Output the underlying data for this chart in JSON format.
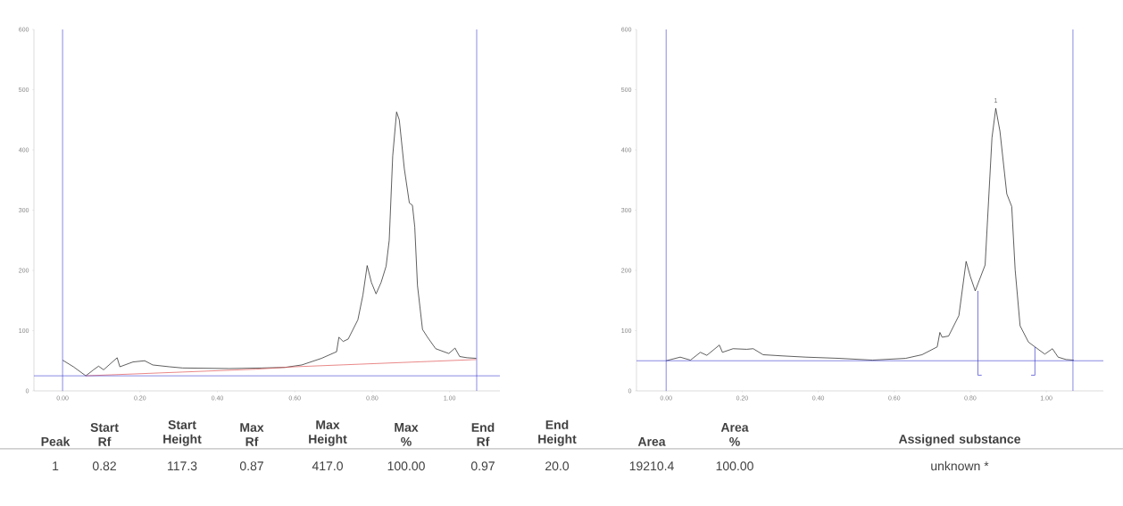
{
  "chart_data": [
    {
      "type": "line",
      "xlim": [
        -0.074,
        1.13
      ],
      "ylim": [
        0,
        600
      ],
      "xticks": [
        {
          "value": 0,
          "label": "0.00"
        },
        {
          "value": 0.2,
          "label": "0.20"
        },
        {
          "value": 0.4,
          "label": "0.40"
        },
        {
          "value": 0.6,
          "label": "0.60"
        },
        {
          "value": 0.8,
          "label": "0.80"
        },
        {
          "value": 1.0,
          "label": "1.00"
        }
      ],
      "yticks": [
        0,
        100,
        200,
        300,
        400,
        500,
        600
      ],
      "series": [
        {
          "color": "#1a1a1a",
          "x": [
            0.0,
            0.028,
            0.06,
            0.08,
            0.093,
            0.106,
            0.141,
            0.148,
            0.182,
            0.212,
            0.233,
            0.276,
            0.31,
            0.43,
            0.515,
            0.575,
            0.618,
            0.669,
            0.708,
            0.714,
            0.725,
            0.738,
            0.763,
            0.776,
            0.787,
            0.798,
            0.81,
            0.823,
            0.836,
            0.844,
            0.853,
            0.863,
            0.87,
            0.883,
            0.896,
            0.904,
            0.91,
            0.917,
            0.93,
            0.943,
            0.964,
            0.998,
            1.014,
            1.026,
            1.045,
            1.069
          ],
          "values": [
            51,
            40,
            25,
            35,
            41,
            35,
            55,
            40,
            48,
            50,
            43,
            40,
            38,
            37,
            38,
            39,
            43,
            54,
            65,
            89,
            82,
            86,
            118,
            159,
            208,
            180,
            161,
            180,
            207,
            250,
            390,
            463,
            450,
            369,
            312,
            308,
            272,
            175,
            102,
            89,
            70,
            62,
            71,
            57,
            55,
            54
          ]
        },
        {
          "color": "#e05555",
          "x": [
            0.06,
            0.5,
            0.6,
            1.069
          ],
          "values": [
            25,
            36,
            40,
            52
          ]
        }
      ],
      "ref_lines": [
        {
          "axis": "x",
          "value": 0,
          "color": "#3b3bd0"
        },
        {
          "axis": "x",
          "value": 1.07,
          "color": "#3b3bd0"
        },
        {
          "axis": "y",
          "value": 25,
          "color": "#3b3bd0"
        }
      ]
    },
    {
      "type": "line",
      "xlim": [
        -0.078,
        1.15
      ],
      "ylim": [
        0,
        600
      ],
      "xticks": [
        {
          "value": 0,
          "label": "0.00"
        },
        {
          "value": 0.2,
          "label": "0.20"
        },
        {
          "value": 0.4,
          "label": "0.40"
        },
        {
          "value": 0.6,
          "label": "0.60"
        },
        {
          "value": 0.8,
          "label": "0.80"
        },
        {
          "value": 1.0,
          "label": "1.00"
        }
      ],
      "yticks": [
        0,
        100,
        200,
        300,
        400,
        500,
        600
      ],
      "series": [
        {
          "color": "#1a1a1a",
          "x": [
            0.0,
            0.037,
            0.064,
            0.09,
            0.107,
            0.14,
            0.148,
            0.176,
            0.212,
            0.229,
            0.255,
            0.307,
            0.368,
            0.455,
            0.543,
            0.63,
            0.673,
            0.713,
            0.72,
            0.726,
            0.743,
            0.77,
            0.789,
            0.8,
            0.813,
            0.839,
            0.857,
            0.867,
            0.878,
            0.896,
            0.909,
            0.918,
            0.931,
            0.953,
            0.97,
            0.996,
            1.016,
            1.031,
            1.052,
            1.072
          ],
          "values": [
            50,
            56,
            51,
            64,
            59,
            76,
            64,
            70,
            69,
            70,
            60,
            58,
            56,
            54,
            51,
            54,
            60,
            73,
            97,
            89,
            91,
            125,
            215,
            190,
            166,
            209,
            420,
            469,
            431,
            327,
            306,
            201,
            108,
            81,
            73,
            61,
            70,
            56,
            52,
            51
          ]
        },
        {
          "color": "#3b3bd0",
          "x": [
            0.82,
            0.82,
            0.83
          ],
          "values": [
            166,
            26,
            26
          ]
        },
        {
          "color": "#3b3bd0",
          "x": [
            0.97,
            0.97,
            0.96
          ],
          "values": [
            73,
            26,
            26
          ]
        }
      ],
      "annotations": [
        "1"
      ],
      "ref_lines": [
        {
          "axis": "x",
          "value": 0,
          "color": "#3b3bd0"
        },
        {
          "axis": "x",
          "value": 1.07,
          "color": "#3b3bd0"
        },
        {
          "axis": "y",
          "value": 50,
          "color": "#3b3bd0"
        }
      ]
    },
    {
      "type": "other",
      "categories": [
        "Peak",
        "Start Rf",
        "Start Height",
        "Max Rf",
        "Max Height",
        "Max %",
        "End Rf",
        "End Height",
        "Area",
        "Area %",
        "Assigned substance"
      ],
      "annotations": [
        "1",
        "0.82",
        "117.3",
        "0.87",
        "417.0",
        "100.00",
        "0.97",
        "20.0",
        "19210.4",
        "100.00",
        "unknown *"
      ]
    }
  ]
}
